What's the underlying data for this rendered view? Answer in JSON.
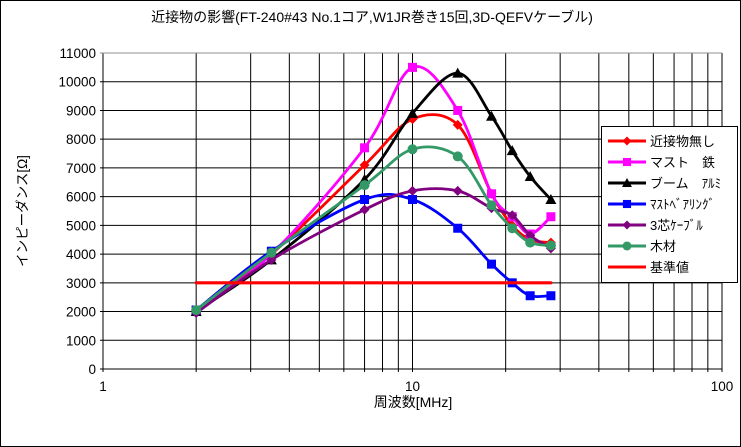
{
  "title": "近接物の影響(FT-240#43 No.1コア,W1JR巻き15回,3D-QEFVケーブル)",
  "chart_data": {
    "type": "line",
    "grid": true,
    "legend_position": "right-overlay",
    "x_axis": {
      "label": "周波数[MHz]",
      "scale": "log",
      "min": 1,
      "max": 100,
      "ticks": [
        1,
        10,
        100
      ]
    },
    "y_axis": {
      "label": "インピーダンス[Ω]",
      "min": 0,
      "max": 11000,
      "tick_step": 1000,
      "ticks": [
        0,
        1000,
        2000,
        3000,
        4000,
        5000,
        6000,
        7000,
        8000,
        9000,
        10000,
        11000
      ]
    },
    "frequencies_mhz": [
      2,
      3.5,
      7,
      10,
      14,
      18,
      21,
      24,
      28
    ],
    "series": [
      {
        "name": "近接物無し",
        "color": "#FF0000",
        "marker": "diamond",
        "values": [
          2050,
          4000,
          7100,
          8700,
          8500,
          6100,
          5000,
          4500,
          4400
        ]
      },
      {
        "name": "マスト　鉄",
        "color": "#FF00FF",
        "marker": "square",
        "values": [
          2050,
          4000,
          7700,
          10500,
          9000,
          6100,
          5300,
          4700,
          5300
        ]
      },
      {
        "name": "ブーム　ｱﾙﾐ",
        "color": "#000000",
        "marker": "triangle",
        "values": [
          2000,
          3800,
          6600,
          8900,
          10300,
          8800,
          7600,
          6700,
          5900
        ]
      },
      {
        "name": "ﾏｽﾄﾍﾞｱﾘﾝｸﾞ",
        "color": "#0000FF",
        "marker": "square",
        "values": [
          2050,
          4100,
          5900,
          5900,
          4900,
          3650,
          3000,
          2550,
          2550
        ]
      },
      {
        "name": "3芯ｹｰﾌﾞﾙ",
        "color": "#800080",
        "marker": "diamond",
        "values": [
          1950,
          3800,
          5550,
          6200,
          6200,
          5600,
          5350,
          4650,
          4200
        ]
      },
      {
        "name": "木材",
        "color": "#339966",
        "marker": "circle",
        "values": [
          2050,
          4050,
          6400,
          7650,
          7400,
          5700,
          4900,
          4400,
          4300
        ]
      },
      {
        "name": "基準値",
        "color": "#FF0000",
        "marker": "none",
        "values": [
          3000,
          3000,
          3000,
          3000,
          3000,
          3000,
          3000,
          3000,
          3000
        ]
      }
    ]
  }
}
